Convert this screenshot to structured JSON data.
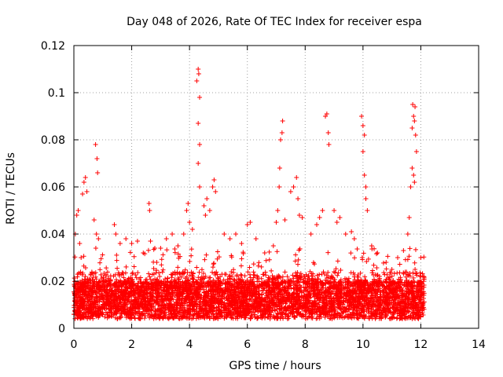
{
  "chart_data": {
    "type": "scatter",
    "title": "Day 048 of 2026, Rate Of TEC Index for receiver espa",
    "xlabel": "GPS time / hours",
    "ylabel": "ROTI / TECUs",
    "xlim": [
      0,
      14
    ],
    "ylim": [
      0,
      0.12
    ],
    "x_ticks": [
      0,
      2,
      4,
      6,
      8,
      10,
      12,
      14
    ],
    "y_ticks": [
      0,
      0.02,
      0.04,
      0.06,
      0.08,
      0.1,
      0.12
    ],
    "x_tick_labels": [
      "0",
      "2",
      "4",
      "6",
      "8",
      "10",
      "12",
      "14"
    ],
    "y_tick_labels": [
      "0",
      "0.02",
      "0.04",
      "0.06",
      "0.08",
      "0.1",
      "0.12"
    ],
    "grid": true,
    "marker": "plus",
    "color": "#ff0000",
    "series": [
      {
        "name": "ROTI",
        "description_of_density": "dense band of points between x 0 and 12.1 with values mostly 0.003-0.03",
        "points": [
          [
            0.05,
            0.04
          ],
          [
            0.1,
            0.048
          ],
          [
            0.15,
            0.05
          ],
          [
            0.2,
            0.036
          ],
          [
            0.25,
            0.03
          ],
          [
            0.3,
            0.057
          ],
          [
            0.35,
            0.062
          ],
          [
            0.4,
            0.064
          ],
          [
            0.45,
            0.058
          ],
          [
            0.7,
            0.046
          ],
          [
            0.75,
            0.078
          ],
          [
            0.8,
            0.072
          ],
          [
            0.82,
            0.066
          ],
          [
            0.78,
            0.04
          ],
          [
            0.85,
            0.038
          ],
          [
            1.4,
            0.044
          ],
          [
            1.45,
            0.04
          ],
          [
            1.6,
            0.036
          ],
          [
            1.8,
            0.038
          ],
          [
            2.0,
            0.036
          ],
          [
            2.2,
            0.037
          ],
          [
            2.4,
            0.032
          ],
          [
            2.6,
            0.053
          ],
          [
            2.62,
            0.05
          ],
          [
            2.65,
            0.037
          ],
          [
            2.8,
            0.034
          ],
          [
            3.0,
            0.034
          ],
          [
            3.2,
            0.038
          ],
          [
            3.4,
            0.04
          ],
          [
            3.6,
            0.035
          ],
          [
            3.8,
            0.04
          ],
          [
            3.9,
            0.05
          ],
          [
            3.95,
            0.053
          ],
          [
            4.0,
            0.045
          ],
          [
            4.1,
            0.042
          ],
          [
            4.25,
            0.105
          ],
          [
            4.3,
            0.11
          ],
          [
            4.32,
            0.108
          ],
          [
            4.35,
            0.098
          ],
          [
            4.3,
            0.087
          ],
          [
            4.35,
            0.078
          ],
          [
            4.3,
            0.07
          ],
          [
            4.35,
            0.06
          ],
          [
            4.5,
            0.052
          ],
          [
            4.55,
            0.048
          ],
          [
            4.6,
            0.055
          ],
          [
            4.7,
            0.05
          ],
          [
            4.8,
            0.06
          ],
          [
            4.85,
            0.063
          ],
          [
            4.9,
            0.058
          ],
          [
            5.2,
            0.04
          ],
          [
            5.4,
            0.038
          ],
          [
            5.6,
            0.04
          ],
          [
            5.8,
            0.036
          ],
          [
            6.0,
            0.044
          ],
          [
            6.1,
            0.045
          ],
          [
            6.3,
            0.038
          ],
          [
            6.6,
            0.032
          ],
          [
            6.9,
            0.035
          ],
          [
            7.0,
            0.045
          ],
          [
            7.05,
            0.05
          ],
          [
            7.1,
            0.06
          ],
          [
            7.12,
            0.068
          ],
          [
            7.15,
            0.08
          ],
          [
            7.2,
            0.083
          ],
          [
            7.22,
            0.088
          ],
          [
            7.3,
            0.046
          ],
          [
            7.5,
            0.058
          ],
          [
            7.6,
            0.06
          ],
          [
            7.7,
            0.064
          ],
          [
            7.75,
            0.055
          ],
          [
            7.8,
            0.048
          ],
          [
            7.9,
            0.047
          ],
          [
            8.2,
            0.04
          ],
          [
            8.4,
            0.044
          ],
          [
            8.5,
            0.047
          ],
          [
            8.6,
            0.05
          ],
          [
            8.7,
            0.09
          ],
          [
            8.75,
            0.091
          ],
          [
            8.8,
            0.083
          ],
          [
            8.82,
            0.078
          ],
          [
            9.0,
            0.05
          ],
          [
            9.1,
            0.045
          ],
          [
            9.2,
            0.047
          ],
          [
            9.4,
            0.04
          ],
          [
            9.6,
            0.041
          ],
          [
            9.7,
            0.038
          ],
          [
            9.95,
            0.09
          ],
          [
            10.0,
            0.086
          ],
          [
            10.05,
            0.082
          ],
          [
            10.0,
            0.075
          ],
          [
            10.05,
            0.065
          ],
          [
            10.1,
            0.06
          ],
          [
            10.1,
            0.055
          ],
          [
            10.15,
            0.05
          ],
          [
            10.3,
            0.035
          ],
          [
            10.5,
            0.032
          ],
          [
            10.8,
            0.028
          ],
          [
            11.0,
            0.025
          ],
          [
            11.2,
            0.03
          ],
          [
            11.4,
            0.033
          ],
          [
            11.55,
            0.04
          ],
          [
            11.6,
            0.047
          ],
          [
            11.65,
            0.06
          ],
          [
            11.7,
            0.085
          ],
          [
            11.72,
            0.095
          ],
          [
            11.75,
            0.09
          ],
          [
            11.78,
            0.088
          ],
          [
            11.8,
            0.094
          ],
          [
            11.82,
            0.082
          ],
          [
            11.85,
            0.075
          ],
          [
            11.7,
            0.068
          ],
          [
            11.75,
            0.065
          ],
          [
            11.78,
            0.062
          ],
          [
            12.0,
            0.03
          ],
          [
            12.1,
            0.022
          ]
        ]
      }
    ]
  }
}
